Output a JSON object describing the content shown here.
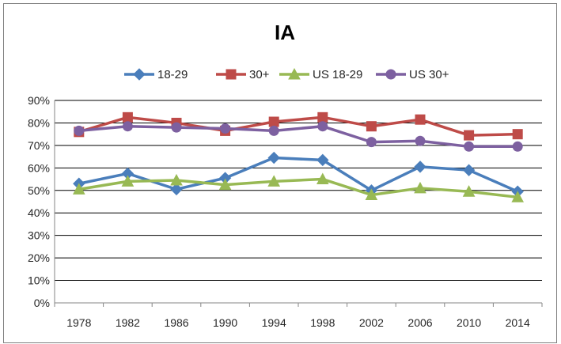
{
  "chart_data": {
    "type": "line",
    "title": "IA",
    "xlabel": "",
    "ylabel": "",
    "x": [
      "1978",
      "1982",
      "1986",
      "1990",
      "1994",
      "1998",
      "2002",
      "2006",
      "2010",
      "2014"
    ],
    "ylim": [
      0,
      0.9
    ],
    "yticks": [
      "0%",
      "10%",
      "20%",
      "30%",
      "40%",
      "50%",
      "60%",
      "70%",
      "80%",
      "90%"
    ],
    "grid": true,
    "legend_position": "top",
    "series": [
      {
        "name": "18-29",
        "color": "#4a7ebb",
        "marker": "diamond",
        "values": [
          0.53,
          0.575,
          0.505,
          0.555,
          0.645,
          0.635,
          0.5,
          0.605,
          0.59,
          0.495
        ]
      },
      {
        "name": "30+",
        "color": "#be4b48",
        "marker": "square",
        "values": [
          0.76,
          0.825,
          0.8,
          0.765,
          0.805,
          0.825,
          0.785,
          0.815,
          0.745,
          0.75
        ]
      },
      {
        "name": "US 18-29",
        "color": "#98b954",
        "marker": "triangle",
        "values": [
          0.505,
          0.54,
          0.545,
          0.525,
          0.54,
          0.55,
          0.48,
          0.51,
          0.495,
          0.47
        ]
      },
      {
        "name": "US 30+",
        "color": "#7d60a0",
        "marker": "circle",
        "values": [
          0.765,
          0.785,
          0.78,
          0.775,
          0.765,
          0.785,
          0.715,
          0.72,
          0.695,
          0.695
        ]
      }
    ]
  }
}
